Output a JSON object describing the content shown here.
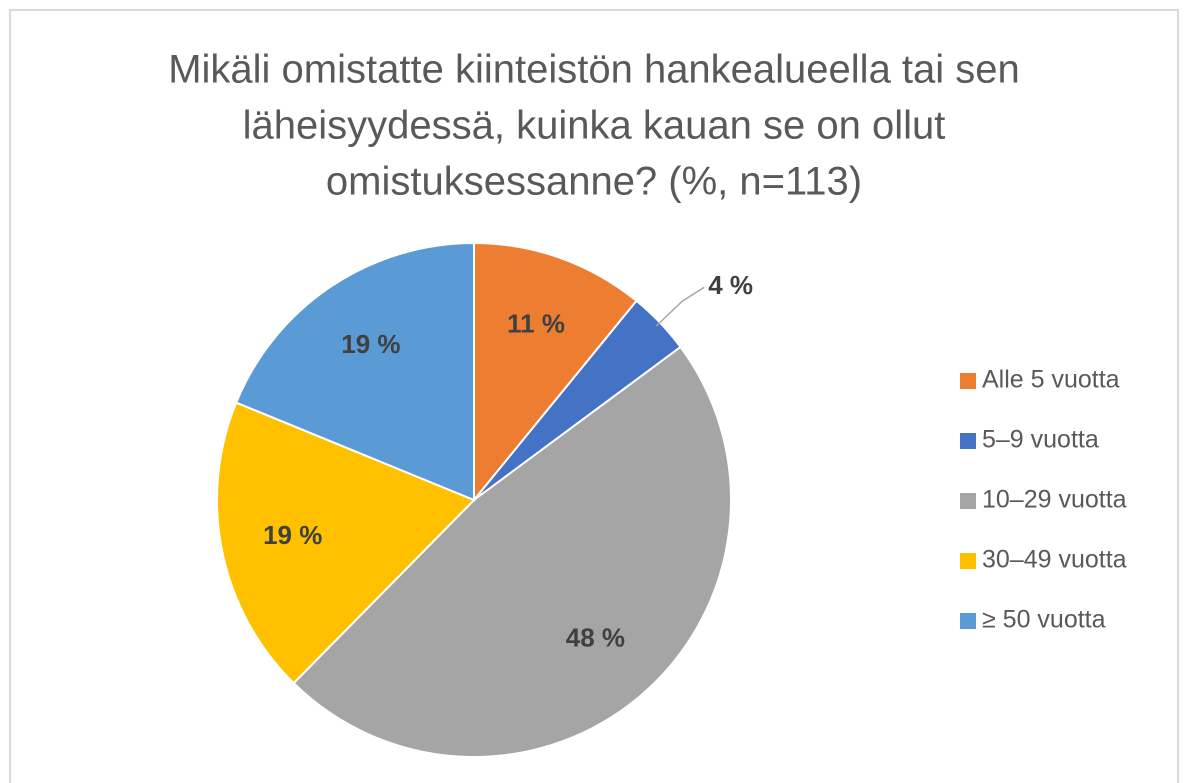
{
  "chart_data": {
    "type": "pie",
    "title": [
      "Mikäli omistatte kiinteistön hankealueella tai sen",
      "läheisyydessä, kuinka kauan se on ollut",
      "omistuksessanne? (%, n=113)"
    ],
    "categories": [
      "Alle 5 vuotta",
      "5–9 vuotta",
      "10–29 vuotta",
      "30–49 vuotta",
      "≥ 50 vuotta"
    ],
    "values": [
      11,
      4,
      48,
      19,
      19
    ],
    "value_labels": [
      "11 %",
      "4 %",
      "48 %",
      "19 %",
      "19 %"
    ],
    "colors": [
      "#ED7D31",
      "#4472C4",
      "#A5A5A5",
      "#FFC000",
      "#5B9BD5"
    ],
    "legend": "right"
  }
}
